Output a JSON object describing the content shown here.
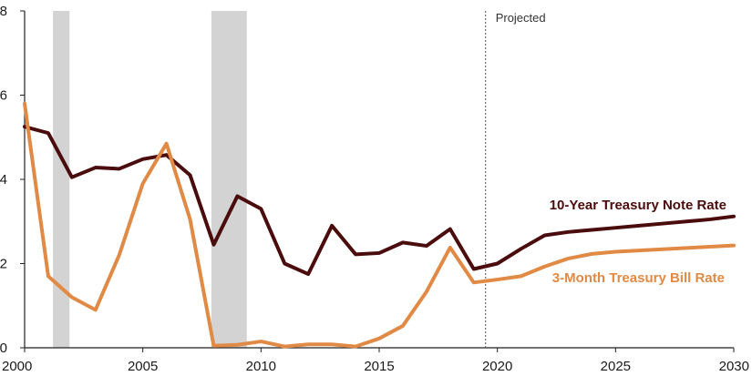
{
  "chart_data": {
    "type": "line",
    "title": "",
    "xlabel": "",
    "ylabel": "",
    "xlim": [
      2000,
      2030
    ],
    "ylim": [
      0,
      8
    ],
    "x_ticks": [
      "2000",
      "2005",
      "2010",
      "2015",
      "2020",
      "2025",
      "2030"
    ],
    "y_ticks": [
      "0",
      "2",
      "4",
      "6",
      "8"
    ],
    "grid": false,
    "recession_shading": [
      [
        2001.2,
        2001.9
      ],
      [
        2007.9,
        2009.4
      ]
    ],
    "projection_start": 2019.5,
    "annotation": "Projected",
    "series": [
      {
        "name": "10-Year Treasury Note Rate",
        "color": "#4a0c0c",
        "points": [
          [
            2000,
            5.25
          ],
          [
            2001,
            5.1
          ],
          [
            2002,
            4.05
          ],
          [
            2003,
            4.28
          ],
          [
            2004,
            4.25
          ],
          [
            2005,
            4.48
          ],
          [
            2006,
            4.58
          ],
          [
            2007,
            4.1
          ],
          [
            2008,
            2.45
          ],
          [
            2009,
            3.6
          ],
          [
            2010,
            3.3
          ],
          [
            2011,
            2.0
          ],
          [
            2012,
            1.75
          ],
          [
            2013,
            2.9
          ],
          [
            2014,
            2.22
          ],
          [
            2015,
            2.25
          ],
          [
            2016,
            2.5
          ],
          [
            2017,
            2.42
          ],
          [
            2018,
            2.82
          ],
          [
            2019,
            1.87
          ],
          [
            2020,
            2.0
          ],
          [
            2021,
            2.35
          ],
          [
            2022,
            2.67
          ],
          [
            2023,
            2.75
          ],
          [
            2024,
            2.8
          ],
          [
            2025,
            2.85
          ],
          [
            2026,
            2.9
          ],
          [
            2027,
            2.95
          ],
          [
            2028,
            3.0
          ],
          [
            2029,
            3.05
          ],
          [
            2030,
            3.12
          ]
        ]
      },
      {
        "name": "3-Month Treasury Bill Rate",
        "color": "#e08a45",
        "points": [
          [
            2000,
            5.8
          ],
          [
            2001,
            1.7
          ],
          [
            2002,
            1.2
          ],
          [
            2003,
            0.9
          ],
          [
            2004,
            2.2
          ],
          [
            2005,
            3.9
          ],
          [
            2006,
            4.85
          ],
          [
            2007,
            3.05
          ],
          [
            2008,
            0.05
          ],
          [
            2009,
            0.07
          ],
          [
            2010,
            0.15
          ],
          [
            2011,
            0.03
          ],
          [
            2012,
            0.08
          ],
          [
            2013,
            0.08
          ],
          [
            2014,
            0.03
          ],
          [
            2015,
            0.22
          ],
          [
            2016,
            0.52
          ],
          [
            2017,
            1.33
          ],
          [
            2018,
            2.38
          ],
          [
            2019,
            1.55
          ],
          [
            2020,
            1.62
          ],
          [
            2021,
            1.7
          ],
          [
            2022,
            1.93
          ],
          [
            2023,
            2.12
          ],
          [
            2024,
            2.23
          ],
          [
            2025,
            2.28
          ],
          [
            2026,
            2.31
          ],
          [
            2027,
            2.34
          ],
          [
            2028,
            2.37
          ],
          [
            2029,
            2.4
          ],
          [
            2030,
            2.43
          ]
        ]
      }
    ]
  }
}
